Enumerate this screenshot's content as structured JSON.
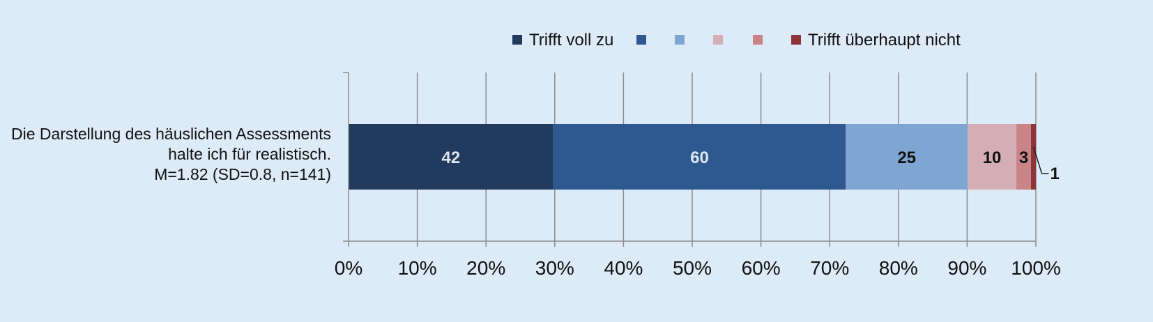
{
  "chart_data": {
    "type": "bar",
    "orientation": "horizontal",
    "stacked": "100%",
    "categories": [
      [
        "Die Darstellung des häuslichen Assessments",
        "halte ich für realistisch.",
        "M=1.82 (SD=0.8, n=141)"
      ]
    ],
    "series": [
      {
        "name": "Trifft voll zu",
        "values": [
          42
        ],
        "color": "#213a5e",
        "label_color": "#dde5ef"
      },
      {
        "name": "",
        "values": [
          60
        ],
        "color": "#2e5990",
        "label_color": "#dde5ef"
      },
      {
        "name": "",
        "values": [
          25
        ],
        "color": "#7fa5d2",
        "label_color": "#111111"
      },
      {
        "name": "",
        "values": [
          10
        ],
        "color": "#d4aeb4",
        "label_color": "#111111"
      },
      {
        "name": "",
        "values": [
          3
        ],
        "color": "#c98487",
        "label_color": "#111111"
      },
      {
        "name": "Trifft überhaupt nicht",
        "values": [
          1
        ],
        "color": "#8c3438",
        "label_color": "#111111",
        "label_outside": true
      }
    ],
    "xaxis": {
      "ticks": [
        "0%",
        "10%",
        "20%",
        "30%",
        "40%",
        "50%",
        "60%",
        "70%",
        "80%",
        "90%",
        "100%"
      ],
      "range": [
        0,
        100
      ]
    },
    "grid": true,
    "legend": "top-center",
    "background": "#ddeaf7"
  }
}
